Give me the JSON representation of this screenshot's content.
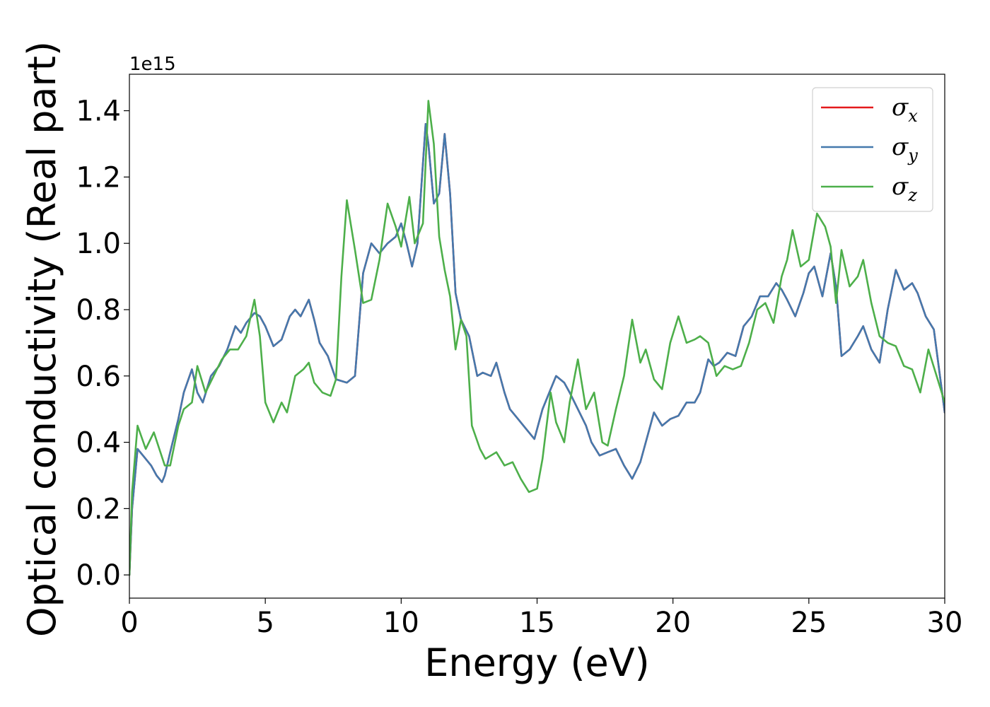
{
  "chart_data": {
    "type": "line",
    "title": "",
    "xlabel": "Energy (eV)",
    "ylabel": "Optical conductivity (Real part)",
    "y_offset_label": "1e15",
    "xlim": [
      0,
      30
    ],
    "ylim": [
      -0.07,
      1.51
    ],
    "x_ticks": [
      0,
      5,
      10,
      15,
      20,
      25,
      30
    ],
    "x_tick_labels": [
      "0",
      "5",
      "10",
      "15",
      "20",
      "25",
      "30"
    ],
    "y_ticks": [
      0.0,
      0.2,
      0.4,
      0.6,
      0.8,
      1.0,
      1.2,
      1.4
    ],
    "y_tick_labels": [
      "0.0",
      "0.2",
      "0.4",
      "0.6",
      "0.8",
      "1.0",
      "1.2",
      "1.4"
    ],
    "grid": false,
    "legend_position": "top-right",
    "series": [
      {
        "name": "σ",
        "subscript": "x",
        "color": "#e41a1c",
        "x": [
          0,
          0.1,
          0.3,
          0.5,
          0.8,
          1.0,
          1.2,
          1.3,
          1.5,
          1.8,
          2.0,
          2.3,
          2.5,
          2.7,
          3.0,
          3.3,
          3.6,
          3.9,
          4.1,
          4.3,
          4.6,
          4.8,
          5.0,
          5.3,
          5.6,
          5.9,
          6.1,
          6.3,
          6.6,
          6.8,
          7.0,
          7.3,
          7.6,
          8.0,
          8.3,
          8.6,
          8.9,
          9.2,
          9.5,
          9.8,
          10.0,
          10.2,
          10.4,
          10.6,
          10.9,
          11.0,
          11.2,
          11.4,
          11.6,
          11.8,
          12.0,
          12.2,
          12.5,
          12.8,
          13.0,
          13.3,
          13.5,
          13.8,
          14.0,
          14.3,
          14.6,
          14.9,
          15.2,
          15.5,
          15.7,
          16.0,
          16.2,
          16.5,
          16.8,
          17.0,
          17.3,
          17.6,
          17.9,
          18.2,
          18.5,
          18.8,
          19.0,
          19.3,
          19.6,
          19.9,
          20.2,
          20.5,
          20.8,
          21.0,
          21.3,
          21.5,
          21.7,
          22.0,
          22.3,
          22.6,
          22.9,
          23.2,
          23.5,
          23.8,
          24.0,
          24.2,
          24.5,
          24.8,
          25.0,
          25.2,
          25.5,
          25.8,
          26.0,
          26.2,
          26.5,
          26.8,
          27.0,
          27.3,
          27.6,
          27.9,
          28.2,
          28.5,
          28.8,
          29.0,
          29.3,
          29.6,
          30.0
        ],
        "values": [
          0.0,
          0.2,
          0.38,
          0.36,
          0.33,
          0.3,
          0.28,
          0.3,
          0.37,
          0.47,
          0.55,
          0.62,
          0.55,
          0.52,
          0.6,
          0.63,
          0.68,
          0.75,
          0.73,
          0.76,
          0.79,
          0.78,
          0.75,
          0.69,
          0.71,
          0.78,
          0.8,
          0.78,
          0.83,
          0.77,
          0.7,
          0.66,
          0.59,
          0.58,
          0.6,
          0.91,
          1.0,
          0.97,
          1.0,
          1.02,
          1.06,
          1.0,
          0.93,
          1.0,
          1.36,
          1.3,
          1.12,
          1.15,
          1.33,
          1.15,
          0.85,
          0.77,
          0.72,
          0.6,
          0.61,
          0.6,
          0.64,
          0.55,
          0.5,
          0.47,
          0.44,
          0.41,
          0.5,
          0.56,
          0.6,
          0.58,
          0.55,
          0.5,
          0.45,
          0.4,
          0.36,
          0.37,
          0.38,
          0.33,
          0.29,
          0.34,
          0.4,
          0.49,
          0.45,
          0.47,
          0.48,
          0.52,
          0.52,
          0.55,
          0.65,
          0.63,
          0.64,
          0.67,
          0.66,
          0.75,
          0.78,
          0.84,
          0.84,
          0.88,
          0.86,
          0.83,
          0.78,
          0.85,
          0.91,
          0.93,
          0.84,
          0.97,
          0.87,
          0.66,
          0.68,
          0.72,
          0.75,
          0.68,
          0.64,
          0.8,
          0.92,
          0.86,
          0.88,
          0.85,
          0.78,
          0.74,
          0.49
        ]
      },
      {
        "name": "σ",
        "subscript": "y",
        "color": "#4479ad",
        "x": [
          0,
          0.1,
          0.3,
          0.5,
          0.8,
          1.0,
          1.2,
          1.3,
          1.5,
          1.8,
          2.0,
          2.3,
          2.5,
          2.7,
          3.0,
          3.3,
          3.6,
          3.9,
          4.1,
          4.3,
          4.6,
          4.8,
          5.0,
          5.3,
          5.6,
          5.9,
          6.1,
          6.3,
          6.6,
          6.8,
          7.0,
          7.3,
          7.6,
          8.0,
          8.3,
          8.6,
          8.9,
          9.2,
          9.5,
          9.8,
          10.0,
          10.2,
          10.4,
          10.6,
          10.9,
          11.0,
          11.2,
          11.4,
          11.6,
          11.8,
          12.0,
          12.2,
          12.5,
          12.8,
          13.0,
          13.3,
          13.5,
          13.8,
          14.0,
          14.3,
          14.6,
          14.9,
          15.2,
          15.5,
          15.7,
          16.0,
          16.2,
          16.5,
          16.8,
          17.0,
          17.3,
          17.6,
          17.9,
          18.2,
          18.5,
          18.8,
          19.0,
          19.3,
          19.6,
          19.9,
          20.2,
          20.5,
          20.8,
          21.0,
          21.3,
          21.5,
          21.7,
          22.0,
          22.3,
          22.6,
          22.9,
          23.2,
          23.5,
          23.8,
          24.0,
          24.2,
          24.5,
          24.8,
          25.0,
          25.2,
          25.5,
          25.8,
          26.0,
          26.2,
          26.5,
          26.8,
          27.0,
          27.3,
          27.6,
          27.9,
          28.2,
          28.5,
          28.8,
          29.0,
          29.3,
          29.6,
          30.0
        ],
        "values": [
          0.0,
          0.2,
          0.38,
          0.36,
          0.33,
          0.3,
          0.28,
          0.3,
          0.37,
          0.47,
          0.55,
          0.62,
          0.55,
          0.52,
          0.6,
          0.63,
          0.68,
          0.75,
          0.73,
          0.76,
          0.79,
          0.78,
          0.75,
          0.69,
          0.71,
          0.78,
          0.8,
          0.78,
          0.83,
          0.77,
          0.7,
          0.66,
          0.59,
          0.58,
          0.6,
          0.91,
          1.0,
          0.97,
          1.0,
          1.02,
          1.06,
          1.0,
          0.93,
          1.0,
          1.36,
          1.3,
          1.12,
          1.15,
          1.33,
          1.15,
          0.85,
          0.77,
          0.72,
          0.6,
          0.61,
          0.6,
          0.64,
          0.55,
          0.5,
          0.47,
          0.44,
          0.41,
          0.5,
          0.56,
          0.6,
          0.58,
          0.55,
          0.5,
          0.45,
          0.4,
          0.36,
          0.37,
          0.38,
          0.33,
          0.29,
          0.34,
          0.4,
          0.49,
          0.45,
          0.47,
          0.48,
          0.52,
          0.52,
          0.55,
          0.65,
          0.63,
          0.64,
          0.67,
          0.66,
          0.75,
          0.78,
          0.84,
          0.84,
          0.88,
          0.86,
          0.83,
          0.78,
          0.85,
          0.91,
          0.93,
          0.84,
          0.97,
          0.87,
          0.66,
          0.68,
          0.72,
          0.75,
          0.68,
          0.64,
          0.8,
          0.92,
          0.86,
          0.88,
          0.85,
          0.78,
          0.74,
          0.49
        ]
      },
      {
        "name": "σ",
        "subscript": "z",
        "color": "#4daf4a",
        "x": [
          0,
          0.1,
          0.3,
          0.6,
          0.9,
          1.1,
          1.3,
          1.5,
          1.8,
          2.0,
          2.3,
          2.5,
          2.8,
          3.1,
          3.4,
          3.7,
          4.0,
          4.3,
          4.6,
          4.8,
          5.0,
          5.3,
          5.6,
          5.8,
          6.1,
          6.4,
          6.6,
          6.8,
          7.1,
          7.4,
          7.6,
          7.8,
          8.0,
          8.3,
          8.6,
          8.9,
          9.2,
          9.5,
          9.8,
          10.0,
          10.3,
          10.5,
          10.8,
          11.0,
          11.2,
          11.4,
          11.6,
          11.8,
          12.0,
          12.2,
          12.4,
          12.6,
          12.9,
          13.1,
          13.3,
          13.5,
          13.8,
          14.1,
          14.4,
          14.7,
          15.0,
          15.2,
          15.5,
          15.7,
          16.0,
          16.2,
          16.5,
          16.8,
          17.1,
          17.4,
          17.6,
          17.9,
          18.2,
          18.5,
          18.8,
          19.0,
          19.3,
          19.6,
          19.9,
          20.2,
          20.5,
          20.8,
          21.0,
          21.3,
          21.6,
          21.9,
          22.2,
          22.5,
          22.8,
          23.1,
          23.4,
          23.7,
          24.0,
          24.2,
          24.4,
          24.7,
          25.0,
          25.3,
          25.6,
          25.8,
          26.0,
          26.2,
          26.5,
          26.8,
          27.0,
          27.3,
          27.6,
          27.9,
          28.2,
          28.5,
          28.8,
          29.1,
          29.4,
          29.7,
          30.0
        ],
        "values": [
          0.0,
          0.25,
          0.45,
          0.38,
          0.43,
          0.38,
          0.33,
          0.33,
          0.45,
          0.5,
          0.52,
          0.63,
          0.55,
          0.6,
          0.65,
          0.68,
          0.68,
          0.72,
          0.83,
          0.72,
          0.52,
          0.46,
          0.52,
          0.49,
          0.6,
          0.62,
          0.64,
          0.58,
          0.55,
          0.54,
          0.59,
          0.9,
          1.13,
          0.98,
          0.82,
          0.83,
          0.95,
          1.12,
          1.05,
          0.99,
          1.14,
          1.0,
          1.06,
          1.43,
          1.3,
          1.02,
          0.92,
          0.84,
          0.68,
          0.77,
          0.72,
          0.45,
          0.38,
          0.35,
          0.36,
          0.37,
          0.33,
          0.34,
          0.29,
          0.25,
          0.26,
          0.35,
          0.55,
          0.46,
          0.4,
          0.52,
          0.65,
          0.5,
          0.55,
          0.4,
          0.39,
          0.5,
          0.6,
          0.77,
          0.64,
          0.68,
          0.59,
          0.56,
          0.7,
          0.78,
          0.7,
          0.71,
          0.72,
          0.7,
          0.6,
          0.63,
          0.62,
          0.63,
          0.7,
          0.8,
          0.82,
          0.76,
          0.9,
          0.95,
          1.04,
          0.93,
          0.95,
          1.09,
          1.05,
          0.99,
          0.82,
          0.98,
          0.87,
          0.9,
          0.95,
          0.82,
          0.72,
          0.7,
          0.69,
          0.63,
          0.62,
          0.55,
          0.68,
          0.6,
          0.52
        ]
      }
    ]
  }
}
